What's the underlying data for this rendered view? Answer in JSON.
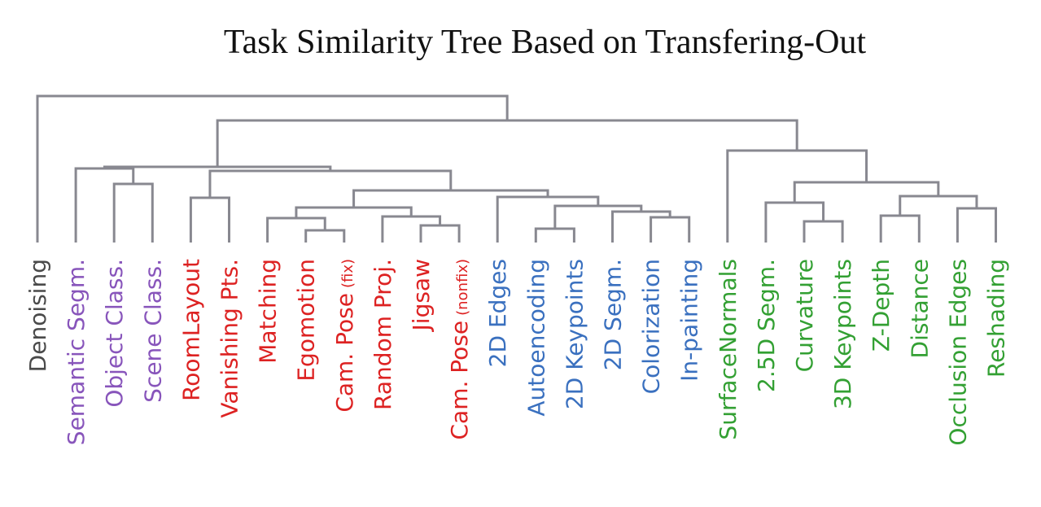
{
  "title": "Task Similarity Tree Based on Transfering-Out",
  "colors": {
    "branch": "#888890",
    "neutral": "#4a4a4a",
    "semantic": "#8855bb",
    "geometric_3d": "#dd2222",
    "low_level_2d": "#3a70bf",
    "surface_3d": "#33a033"
  },
  "leaves": [
    {
      "label": "Denoising",
      "group": "neutral"
    },
    {
      "label": "Semantic Segm.",
      "group": "semantic"
    },
    {
      "label": "Object Class.",
      "group": "semantic"
    },
    {
      "label": "Scene Class.",
      "group": "semantic"
    },
    {
      "label": "RoomLayout",
      "group": "geometric_3d"
    },
    {
      "label": "Vanishing Pts.",
      "group": "geometric_3d"
    },
    {
      "label": "Matching",
      "group": "geometric_3d"
    },
    {
      "label": "Egomotion",
      "group": "geometric_3d"
    },
    {
      "label": "Cam. Pose",
      "suffix": "(fix)",
      "group": "geometric_3d"
    },
    {
      "label": "Random Proj.",
      "group": "geometric_3d"
    },
    {
      "label": "Jigsaw",
      "group": "geometric_3d"
    },
    {
      "label": "Cam. Pose",
      "suffix": "(nonfix)",
      "group": "geometric_3d"
    },
    {
      "label": "2D Edges",
      "group": "low_level_2d"
    },
    {
      "label": "Autoencoding",
      "group": "low_level_2d"
    },
    {
      "label": "2D Keypoints",
      "group": "low_level_2d"
    },
    {
      "label": "2D Segm.",
      "group": "low_level_2d"
    },
    {
      "label": "Colorization",
      "group": "low_level_2d"
    },
    {
      "label": "In-painting",
      "group": "low_level_2d"
    },
    {
      "label": "SurfaceNormals",
      "group": "surface_3d"
    },
    {
      "label": "2.5D Segm.",
      "group": "surface_3d"
    },
    {
      "label": "Curvature",
      "group": "surface_3d"
    },
    {
      "label": "3D Keypoints",
      "group": "surface_3d"
    },
    {
      "label": "Z-Depth",
      "group": "surface_3d"
    },
    {
      "label": "Distance",
      "group": "surface_3d"
    },
    {
      "label": "Occlusion Edges",
      "group": "surface_3d"
    },
    {
      "label": "Reshading",
      "group": "surface_3d"
    }
  ]
}
